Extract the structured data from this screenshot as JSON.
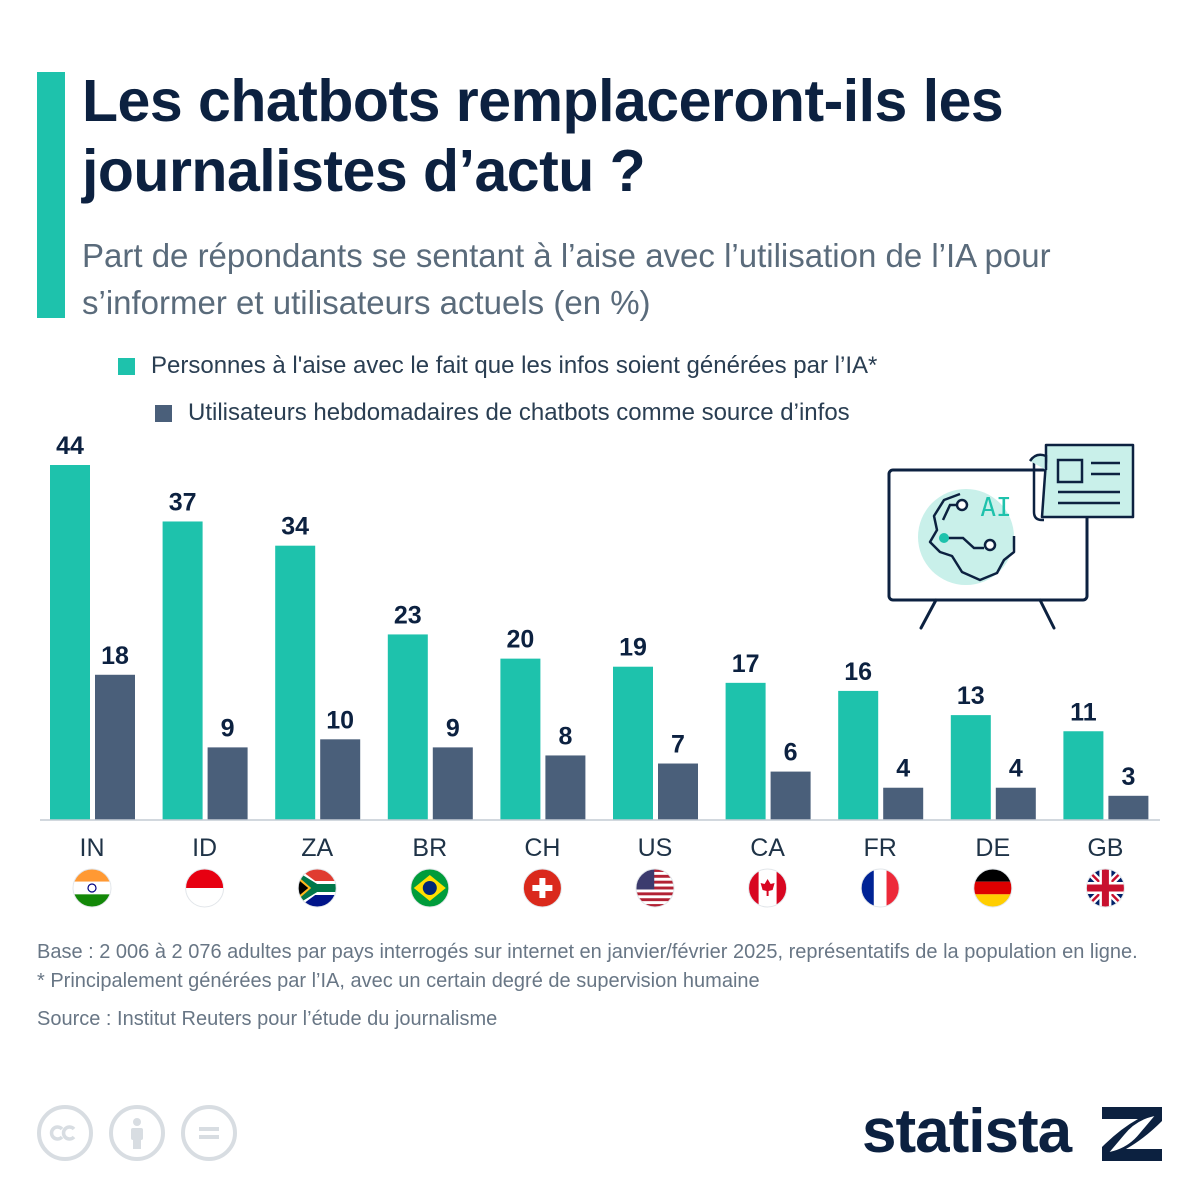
{
  "header": {
    "title": "Les chatbots remplaceront-ils les journalistes d’actu ?",
    "subtitle": "Part de répondants se sentant à l’aise avec l’utilisation de l’IA pour s’informer et utilisateurs actuels (en %)"
  },
  "legend": {
    "series_1": "Personnes à l'aise avec le fait que les infos soient générées par l’IA*",
    "series_2": "Utilisateurs hebdomadaires de chatbots comme source d’infos"
  },
  "illustration": {
    "screen_text": "AI"
  },
  "chart_data": {
    "type": "bar",
    "categories": [
      "IN",
      "ID",
      "ZA",
      "BR",
      "CH",
      "US",
      "CA",
      "FR",
      "DE",
      "GB"
    ],
    "series": [
      {
        "name": "Personnes à l'aise avec le fait que les infos soient générées par l’IA*",
        "color": "#1ec2ac",
        "values": [
          44,
          37,
          34,
          23,
          20,
          19,
          17,
          16,
          13,
          11
        ]
      },
      {
        "name": "Utilisateurs hebdomadaires de chatbots comme source d’infos",
        "color": "#4a5f7a",
        "values": [
          18,
          9,
          10,
          9,
          8,
          7,
          6,
          4,
          4,
          3
        ]
      }
    ],
    "ylim": [
      0,
      44
    ],
    "flags": [
      "india-flag",
      "indonesia-flag",
      "south-africa-flag",
      "brazil-flag",
      "switzerland-flag",
      "usa-flag",
      "canada-flag",
      "france-flag",
      "germany-flag",
      "uk-flag"
    ]
  },
  "footer": {
    "base_note": "Base : 2 006 à 2 076 adultes par pays interrogés sur internet en janvier/février 2025, représentatifs de la population en ligne.",
    "asterisk_note": "* Principalement générées par l’IA, avec un certain degré de supervision humaine",
    "source": "Source : Institut Reuters pour l’étude du journalisme",
    "brand": "statista"
  },
  "colors": {
    "teal": "#1ec2ac",
    "slate": "#4a5f7a",
    "navy": "#0c2140",
    "subtitle_gray": "#5a6b7b",
    "footnote_gray": "#687685"
  }
}
